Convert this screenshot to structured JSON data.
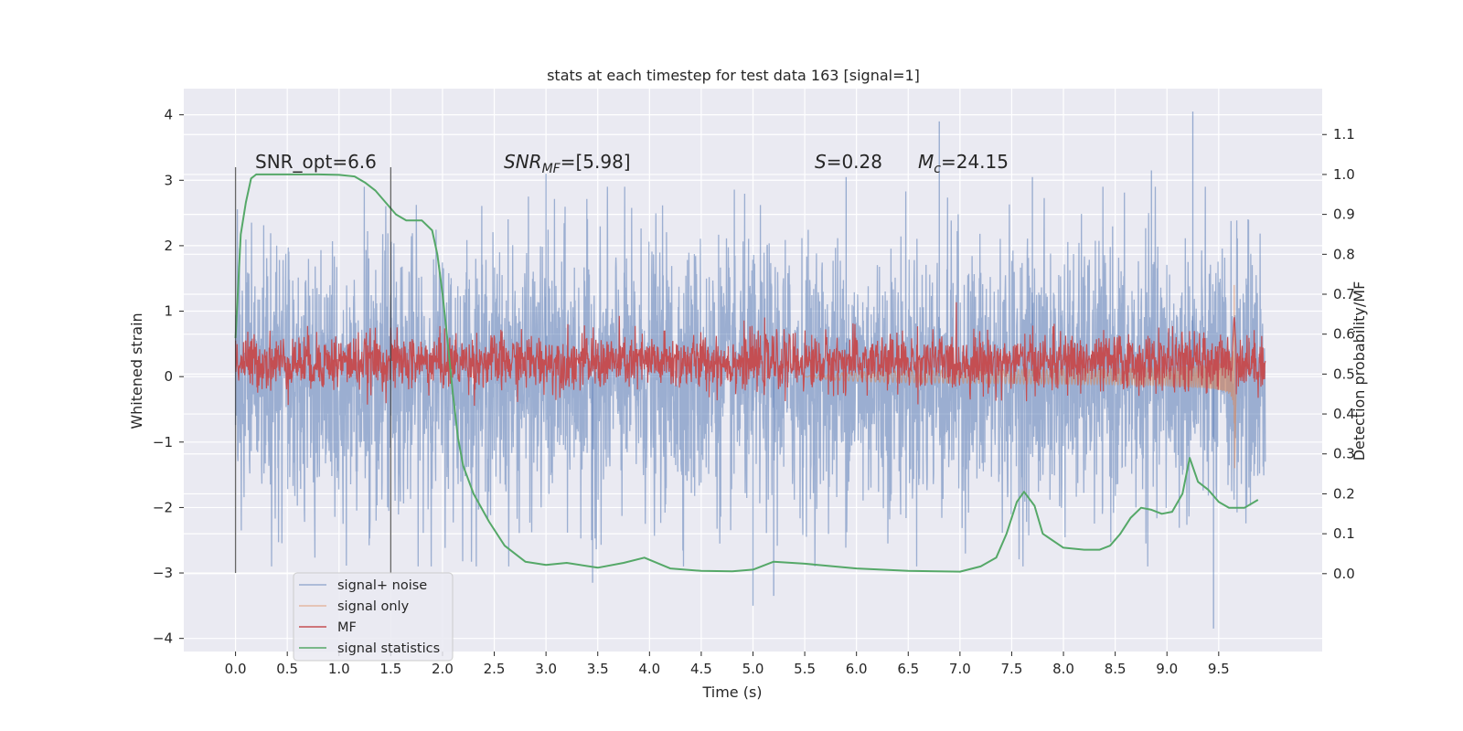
{
  "chart_data": {
    "type": "line",
    "title": "stats at each timestep for test data 163 [signal=1]",
    "xlabel": "Time (s)",
    "ylabel": "Whitened strain",
    "ylabel_right": "Detection probability/MF",
    "xlim": [
      -0.5,
      10.5
    ],
    "ylim": [
      -4.2,
      4.4
    ],
    "ylim_right": [
      -0.195,
      1.215
    ],
    "x_ticks": [
      0.0,
      0.5,
      1.0,
      1.5,
      2.0,
      2.5,
      3.0,
      3.5,
      4.0,
      4.5,
      5.0,
      5.5,
      6.0,
      6.5,
      7.0,
      7.5,
      8.0,
      8.5,
      9.0,
      9.5
    ],
    "x_tick_labels": [
      "0.0",
      "0.5",
      "1.0",
      "1.5",
      "2.0",
      "2.5",
      "3.0",
      "3.5",
      "4.0",
      "4.5",
      "5.0",
      "5.5",
      "6.0",
      "6.5",
      "7.0",
      "7.5",
      "8.0",
      "8.5",
      "9.0",
      "9.5"
    ],
    "y_ticks": [
      -4,
      -3,
      -2,
      -1,
      0,
      1,
      2,
      3,
      4
    ],
    "y_tick_labels": [
      "−4",
      "−3",
      "−2",
      "−1",
      "0",
      "1",
      "2",
      "3",
      "4"
    ],
    "y_right_ticks": [
      0.0,
      0.1,
      0.2,
      0.3,
      0.4,
      0.5,
      0.6,
      0.7,
      0.8,
      0.9,
      1.0,
      1.1
    ],
    "y_right_tick_labels": [
      "0.0",
      "0.1",
      "0.2",
      "0.3",
      "0.4",
      "0.5",
      "0.6",
      "0.7",
      "0.8",
      "0.9",
      "1.0",
      "1.1"
    ],
    "grid": true,
    "legend_position": "lower-left",
    "window_lines": [
      0.0,
      1.5
    ],
    "annotations": {
      "snr_opt": "SNR_opt=6.6",
      "snr_mf": {
        "main": "SNR",
        "sub": "MF",
        "rest": "=[5.98]"
      },
      "s": {
        "main": "S",
        "rest": "=0.28"
      },
      "mc": {
        "main": "M",
        "sub": "c",
        "rest": "=24.15"
      }
    },
    "series": [
      {
        "name": "signal+ noise",
        "color": "#4c72b0",
        "axis": "left",
        "kind": "noise_band",
        "x_range": [
          0.0,
          9.95
        ],
        "center": 0.0,
        "sigma": 1.0,
        "extremes": [
          [
            6.8,
            3.9
          ],
          [
            9.25,
            4.05
          ],
          [
            9.45,
            -3.85
          ],
          [
            5.0,
            -3.5
          ],
          [
            5.2,
            -3.35
          ],
          [
            3.45,
            -3.15
          ],
          [
            3.0,
            3.1
          ],
          [
            5.9,
            3.05
          ],
          [
            7.7,
            3.05
          ],
          [
            8.85,
            3.15
          ]
        ]
      },
      {
        "name": "signal only",
        "color": "#dd8452",
        "axis": "left",
        "kind": "chirp",
        "t_merge": 9.65,
        "peak": 1.4,
        "trough": -1.4
      },
      {
        "name": "MF",
        "color": "#c44e52",
        "axis": "right",
        "kind": "noisy_band",
        "x_range": [
          0.0,
          9.95
        ],
        "center": 0.53,
        "spread": 0.035,
        "spike": [
          9.65,
          0.65
        ]
      },
      {
        "name": "signal statistics",
        "color": "#55a868",
        "axis": "right",
        "x": [
          0.0,
          0.05,
          0.1,
          0.15,
          0.2,
          0.3,
          0.5,
          0.8,
          1.0,
          1.15,
          1.25,
          1.35,
          1.45,
          1.55,
          1.65,
          1.75,
          1.8,
          1.9,
          1.95,
          2.0,
          2.05,
          2.1,
          2.15,
          2.2,
          2.3,
          2.45,
          2.6,
          2.8,
          3.0,
          3.2,
          3.5,
          3.75,
          3.95,
          4.2,
          4.5,
          4.8,
          5.0,
          5.2,
          5.5,
          6.0,
          6.5,
          7.0,
          7.2,
          7.35,
          7.45,
          7.55,
          7.62,
          7.72,
          7.8,
          8.0,
          8.2,
          8.35,
          8.45,
          8.55,
          8.65,
          8.75,
          8.85,
          8.95,
          9.05,
          9.15,
          9.22,
          9.3,
          9.4,
          9.5,
          9.6,
          9.75,
          9.88
        ],
        "y": [
          0.59,
          0.85,
          0.93,
          0.99,
          1.0,
          1.0,
          1.0,
          1.0,
          0.999,
          0.995,
          0.98,
          0.96,
          0.93,
          0.9,
          0.885,
          0.885,
          0.885,
          0.86,
          0.8,
          0.7,
          0.58,
          0.45,
          0.34,
          0.27,
          0.2,
          0.13,
          0.07,
          0.03,
          0.022,
          0.027,
          0.015,
          0.027,
          0.04,
          0.013,
          0.007,
          0.006,
          0.01,
          0.03,
          0.025,
          0.013,
          0.007,
          0.005,
          0.018,
          0.04,
          0.1,
          0.18,
          0.205,
          0.17,
          0.1,
          0.065,
          0.06,
          0.06,
          0.07,
          0.1,
          0.14,
          0.165,
          0.16,
          0.15,
          0.155,
          0.2,
          0.29,
          0.23,
          0.21,
          0.18,
          0.165,
          0.165,
          0.185
        ]
      }
    ]
  }
}
